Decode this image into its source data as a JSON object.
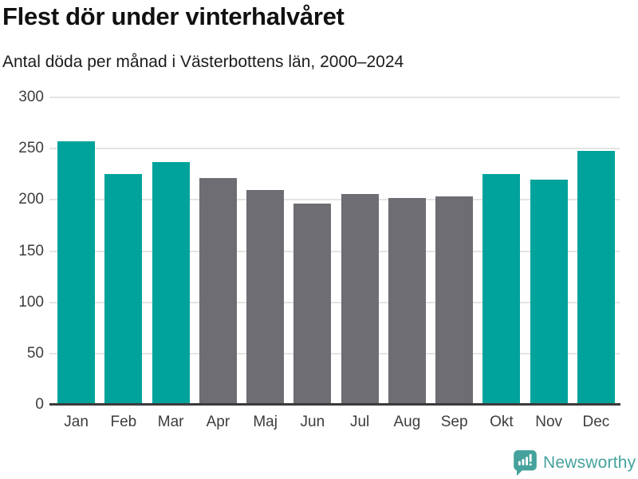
{
  "header": {
    "title": "Flest dör under vinterhalvåret",
    "subtitle": "Antal döda per månad i Västerbottens län, 2000–2024"
  },
  "chart_data": {
    "type": "bar",
    "title": "Flest dör under vinterhalvåret",
    "subtitle": "Antal döda per månad i Västerbottens län, 2000–2024",
    "categories": [
      "Jan",
      "Feb",
      "Mar",
      "Apr",
      "Maj",
      "Jun",
      "Jul",
      "Aug",
      "Sep",
      "Okt",
      "Nov",
      "Dec"
    ],
    "values": [
      257,
      225,
      237,
      221,
      210,
      196,
      206,
      202,
      203,
      225,
      220,
      248
    ],
    "bar_color_keys": [
      "teal",
      "teal",
      "teal",
      "gray",
      "gray",
      "gray",
      "gray",
      "gray",
      "gray",
      "teal",
      "teal",
      "teal"
    ],
    "colors": {
      "teal": "#00a39b",
      "gray": "#6e6d73"
    },
    "xlabel": "",
    "ylabel": "",
    "ylim": [
      0,
      300
    ],
    "yticks": [
      0,
      50,
      100,
      150,
      200,
      250,
      300
    ],
    "grid": true,
    "legend": "none",
    "axis_color": "#3b3b3b",
    "gridline_color": "#e4e4e4"
  },
  "branding": {
    "logo_text": "Newsworthy",
    "logo_color": "#45a29c",
    "logo_icon": "newsworthy-bubble-chart-icon"
  }
}
